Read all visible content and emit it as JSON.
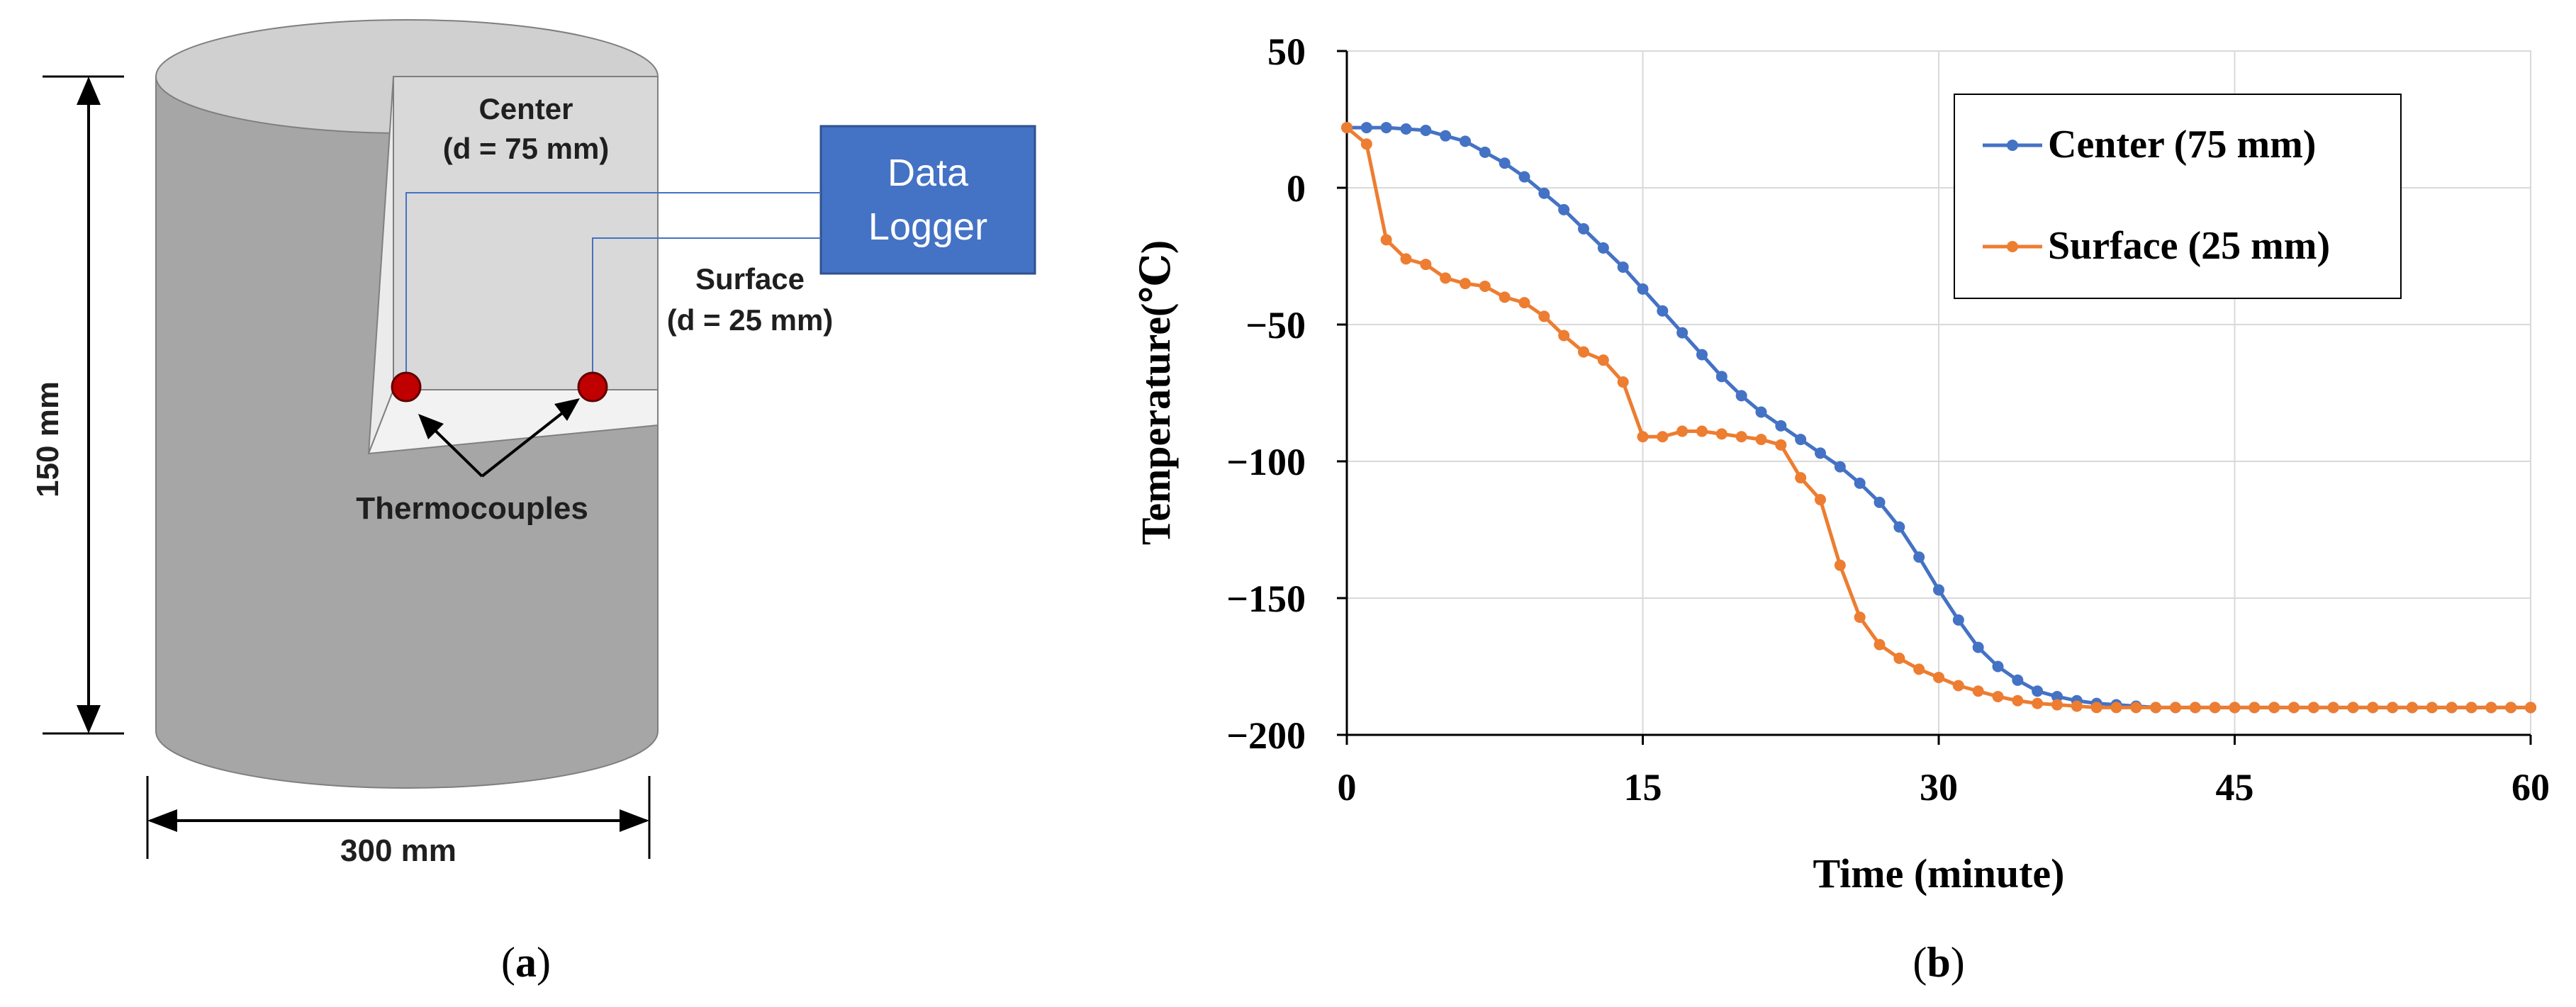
{
  "panel_a": {
    "caption_open": "(",
    "caption_letter": "a",
    "caption_close": ")",
    "height_label": "150 mm",
    "width_label": "300 mm",
    "center_label_line1": "Center",
    "center_label_line2": "(d = 75 mm)",
    "surface_label_line1": "Surface",
    "surface_label_line2": "(d = 25 mm)",
    "logger_line1": "Data",
    "logger_line2": "Logger",
    "thermocouples_label": "Thermocouples",
    "colors": {
      "cylinder_body": "#a6a6a6",
      "cylinder_top": "#d0d0d0",
      "cut_face": "#d9d9d9",
      "logger_box": "#4472c4",
      "sensor": "#c00000",
      "wire": "#4472c4"
    }
  },
  "panel_b": {
    "caption_open": "(",
    "caption_letter": "b",
    "caption_close": ")"
  },
  "chart_data": {
    "type": "line",
    "xlabel": "Time (minute)",
    "ylabel": "Temperature(℃)",
    "xlim": [
      0,
      60
    ],
    "ylim": [
      -200,
      50
    ],
    "xticks": [
      "0",
      "15",
      "30",
      "45",
      "60"
    ],
    "yticks": [
      "50",
      "0",
      "−50",
      "−100",
      "−150",
      "−200"
    ],
    "grid": true,
    "legend_position": "top-right",
    "series": [
      {
        "name": "Center (75 mm)",
        "color": "#4472c4",
        "x": [
          0,
          1,
          2,
          3,
          4,
          5,
          6,
          7,
          8,
          9,
          10,
          11,
          12,
          13,
          14,
          15,
          16,
          17,
          18,
          19,
          20,
          21,
          22,
          23,
          24,
          25,
          26,
          27,
          28,
          29,
          30,
          31,
          32,
          33,
          34,
          35,
          36,
          37,
          38,
          39,
          40,
          41,
          42,
          43,
          44,
          45,
          46,
          47,
          48,
          49,
          50,
          51,
          52,
          53,
          54,
          55,
          56,
          57,
          58,
          59,
          60
        ],
        "y": [
          22,
          22,
          22,
          21.5,
          21,
          19,
          17,
          13,
          9,
          4,
          -2,
          -8,
          -15,
          -22,
          -29,
          -37,
          -45,
          -53,
          -61,
          -69,
          -76,
          -82,
          -87,
          -92,
          -97,
          -102,
          -108,
          -115,
          -124,
          -135,
          -147,
          -158,
          -168,
          -175,
          -180,
          -184,
          -186,
          -187.5,
          -188.5,
          -189,
          -189.5,
          -190,
          -190,
          -190,
          -190,
          -190,
          -190,
          -190,
          -190,
          -190,
          -190,
          -190,
          -190,
          -190,
          -190,
          -190,
          -190,
          -190,
          -190,
          -190,
          -190
        ]
      },
      {
        "name": "Surface (25 mm)",
        "color": "#ed7d31",
        "x": [
          0,
          1,
          2,
          3,
          4,
          5,
          6,
          7,
          8,
          9,
          10,
          11,
          12,
          13,
          14,
          15,
          16,
          17,
          18,
          19,
          20,
          21,
          22,
          23,
          24,
          25,
          26,
          27,
          28,
          29,
          30,
          31,
          32,
          33,
          34,
          35,
          36,
          37,
          38,
          39,
          40,
          41,
          42,
          43,
          44,
          45,
          46,
          47,
          48,
          49,
          50,
          51,
          52,
          53,
          54,
          55,
          56,
          57,
          58,
          59,
          60
        ],
        "y": [
          22,
          16,
          -19,
          -26,
          -28,
          -33,
          -35,
          -36,
          -40,
          -42,
          -47,
          -54,
          -60,
          -63,
          -71,
          -91,
          -91,
          -89,
          -89,
          -90,
          -91,
          -92,
          -94,
          -106,
          -114,
          -138,
          -157,
          -167,
          -172,
          -176,
          -179,
          -182,
          -184,
          -186,
          -187.5,
          -188.5,
          -189,
          -189.5,
          -190,
          -190,
          -190,
          -190,
          -190,
          -190,
          -190,
          -190,
          -190,
          -190,
          -190,
          -190,
          -190,
          -190,
          -190,
          -190,
          -190,
          -190,
          -190,
          -190,
          -190,
          -190,
          -190
        ]
      }
    ]
  }
}
